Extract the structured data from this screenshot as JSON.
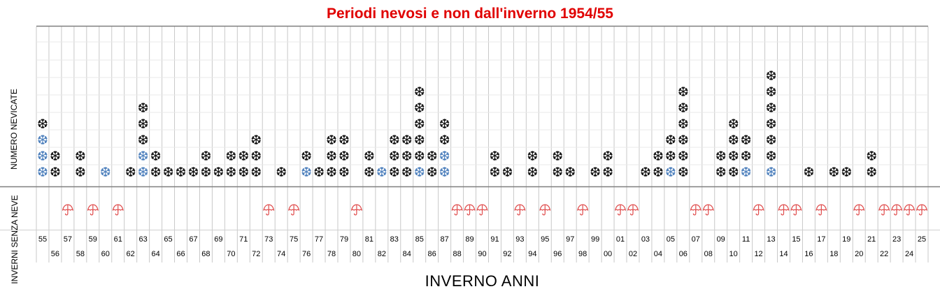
{
  "title": "Periodi nevosi e non dall'inverno 1954/55",
  "ylabel_top": "NUMERO NEVICATE",
  "ylabel_bottom": "INVERNI SENZA NEVE",
  "xlabel": "INVERNO  ANNI",
  "colors": {
    "title": "#e00000",
    "snow_black": "#111111",
    "snow_blue": "#4f81bd",
    "umbrella": "#e05050",
    "gridline": "#c8c8c8",
    "separator": "#7f7f7f"
  },
  "icons": {
    "snow": "snowflake-icon",
    "no_snow": "umbrella-icon"
  },
  "chart_data": {
    "type": "pictogram",
    "categories": [
      "55",
      "56",
      "57",
      "58",
      "59",
      "60",
      "61",
      "62",
      "63",
      "64",
      "65",
      "66",
      "67",
      "68",
      "69",
      "70",
      "71",
      "72",
      "73",
      "74",
      "75",
      "76",
      "77",
      "78",
      "79",
      "80",
      "81",
      "82",
      "83",
      "84",
      "85",
      "86",
      "87",
      "88",
      "89",
      "90",
      "91",
      "92",
      "93",
      "94",
      "95",
      "96",
      "97",
      "98",
      "99",
      "00",
      "01",
      "02",
      "03",
      "04",
      "05",
      "06",
      "07",
      "08",
      "09",
      "10",
      "11",
      "12",
      "13",
      "14",
      "15",
      "16",
      "17",
      "18",
      "19",
      "20",
      "21",
      "22",
      "23",
      "24",
      "25"
    ],
    "series": [
      {
        "name": "",
        "color": "blue",
        "values": [
          3,
          0,
          0,
          0,
          0,
          1,
          0,
          0,
          2,
          0,
          0,
          0,
          0,
          0,
          0,
          0,
          0,
          0,
          0,
          0,
          0,
          1,
          0,
          0,
          0,
          0,
          0,
          1,
          0,
          0,
          1,
          0,
          2,
          0,
          0,
          0,
          0,
          0,
          0,
          0,
          0,
          0,
          0,
          0,
          0,
          0,
          0,
          0,
          0,
          0,
          1,
          0,
          0,
          0,
          0,
          0,
          1,
          0,
          1,
          0,
          0,
          0,
          0,
          0,
          0,
          0,
          0,
          0,
          0,
          0,
          0
        ]
      },
      {
        "name": "",
        "color": "black",
        "values": [
          1,
          2,
          0,
          2,
          0,
          0,
          0,
          1,
          3,
          2,
          1,
          1,
          1,
          2,
          1,
          2,
          2,
          3,
          0,
          1,
          0,
          1,
          1,
          3,
          3,
          0,
          2,
          0,
          3,
          3,
          5,
          2,
          2,
          0,
          0,
          0,
          2,
          1,
          0,
          2,
          0,
          2,
          1,
          0,
          1,
          2,
          0,
          0,
          1,
          2,
          2,
          6,
          0,
          0,
          2,
          4,
          2,
          0,
          6,
          0,
          0,
          1,
          0,
          1,
          1,
          0,
          2,
          0,
          0,
          0,
          0
        ]
      }
    ],
    "no_snow_winters": [
      "57",
      "59",
      "61",
      "73",
      "75",
      "80",
      "88",
      "89",
      "90",
      "93",
      "95",
      "98",
      "01",
      "02",
      "07",
      "08",
      "12",
      "14",
      "15",
      "17",
      "20",
      "22",
      "23",
      "24",
      "25"
    ],
    "grid": true,
    "legend": "none"
  }
}
